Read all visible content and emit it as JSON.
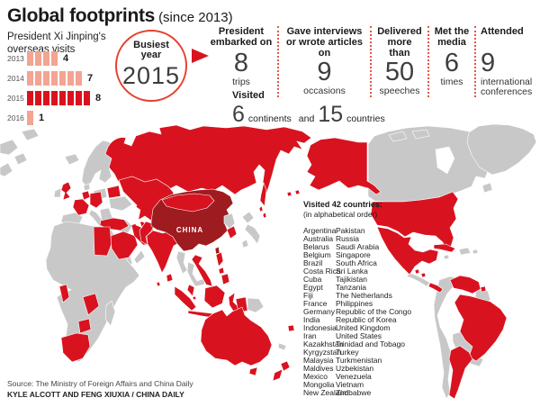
{
  "colors": {
    "visited_red": "#d8131f",
    "china_dark_red": "#9e1b20",
    "not_visited_gray": "#c8c8c9",
    "bar_light_pink": "#f3a493",
    "accent_red": "#e8402e"
  },
  "header": {
    "title": "Global footprints",
    "subtitle": "(since 2013)"
  },
  "chart_data": {
    "type": "bar",
    "orientation": "horizontal-pictogram",
    "title": "President Xi Jinping's overseas visits",
    "heading_line1": "President Xi Jinping's",
    "heading_line2": "overseas visits",
    "categories": [
      "2013",
      "2014",
      "2015",
      "2016"
    ],
    "values": [
      4,
      7,
      8,
      1
    ],
    "highlight_index": 2,
    "highlight_category": "2015"
  },
  "busiest": {
    "label_line1": "Busiest",
    "label_line2": "year",
    "year": "2015"
  },
  "stats": [
    {
      "label": "President embarked on",
      "value": "8",
      "unit": "trips"
    },
    {
      "label": "Gave interviews or wrote articles on",
      "value": "9",
      "unit": "occasions"
    },
    {
      "label": "Delivered more than",
      "value": "50",
      "unit": "speeches"
    },
    {
      "label": "Met the media",
      "value": "6",
      "unit": "times"
    },
    {
      "label": "Attended",
      "value": "9",
      "unit": "international conferences"
    }
  ],
  "visited": {
    "label": "Visited",
    "num_continents": "6",
    "word_continents": "continents",
    "conjunction": "and",
    "num_countries": "15",
    "word_countries": "countries"
  },
  "map": {
    "china_label": "CHINA",
    "list_heading": "Visited 42 countries:",
    "list_subheading": "(in alphabetical order)",
    "countries_col1": [
      "Argentina",
      "Australia",
      "Belarus",
      "Belgium",
      "Brazil",
      "Costa Rica",
      "Cuba",
      "Egypt",
      "Fiji",
      "France",
      "Germany",
      "India",
      "Indonesia",
      "Iran",
      "Kazakhstan",
      "Kyrgyzstan",
      "Malaysia",
      "Maldives",
      "Mexico",
      "Mongolia",
      "New Zealand"
    ],
    "countries_col2": [
      "Pakistan",
      "Russia",
      "Saudi Arabia",
      "Singapore",
      "South Africa",
      "Sri Lanka",
      "Tajikistan",
      "Tanzania",
      "The Netherlands",
      "Philippines",
      "Republic of the Congo",
      "Republic of Korea",
      "United Kingdom",
      "United States",
      "Trinidad and Tobago",
      "Turkey",
      "Turkmenistan",
      "Uzbekistan",
      "Venezuela",
      "Vietnam",
      "Zimbabwe"
    ]
  },
  "footer": {
    "source": "Source: The Ministry of Foreign Affairs and China Daily",
    "credit": "KYLE ALCOTT AND FENG XIUXIA / CHINA DAILY"
  }
}
